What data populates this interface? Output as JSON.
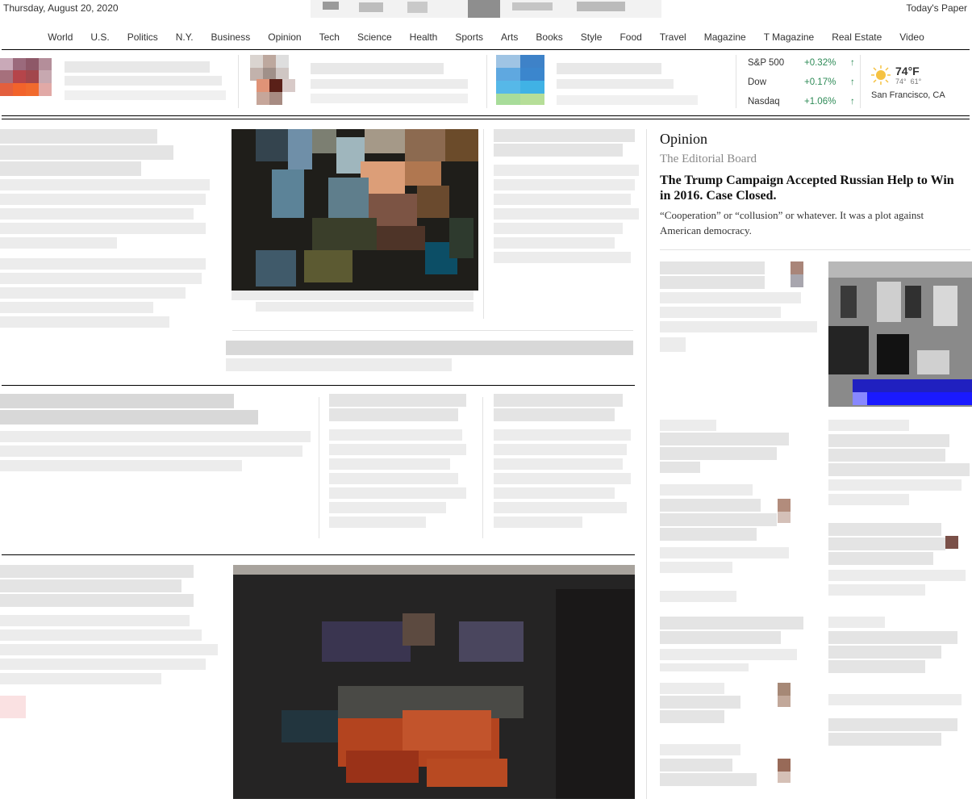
{
  "header": {
    "date": "Thursday, August 20, 2020",
    "todays_paper": "Today's Paper"
  },
  "nav": {
    "items": [
      "World",
      "U.S.",
      "Politics",
      "N.Y.",
      "Business",
      "Opinion",
      "Tech",
      "Science",
      "Health",
      "Sports",
      "Arts",
      "Books",
      "Style",
      "Food",
      "Travel",
      "Magazine",
      "T Magazine",
      "Real Estate",
      "Video"
    ]
  },
  "markets": [
    {
      "name": "S&P 500",
      "change": "+0.32%",
      "arrow": "↑"
    },
    {
      "name": "Dow",
      "change": "+0.17%",
      "arrow": "↑"
    },
    {
      "name": "Nasdaq",
      "change": "+1.06%",
      "arrow": "↑"
    }
  ],
  "weather": {
    "icon": "sun-icon",
    "temp": "74°F",
    "high": "74°",
    "low": "61°",
    "location": "San Francisco, CA"
  },
  "opinion": {
    "section": "Opinion",
    "byline": "The Editorial Board",
    "headline": "The Trump Campaign Accepted Russian Help to Win in 2016. Case Closed.",
    "summary": "“Cooperation” or “collusion” or whatever. It was a plot against American democracy."
  },
  "colors": {
    "market_up": "#2e8b57",
    "sun": "#f5c242"
  }
}
